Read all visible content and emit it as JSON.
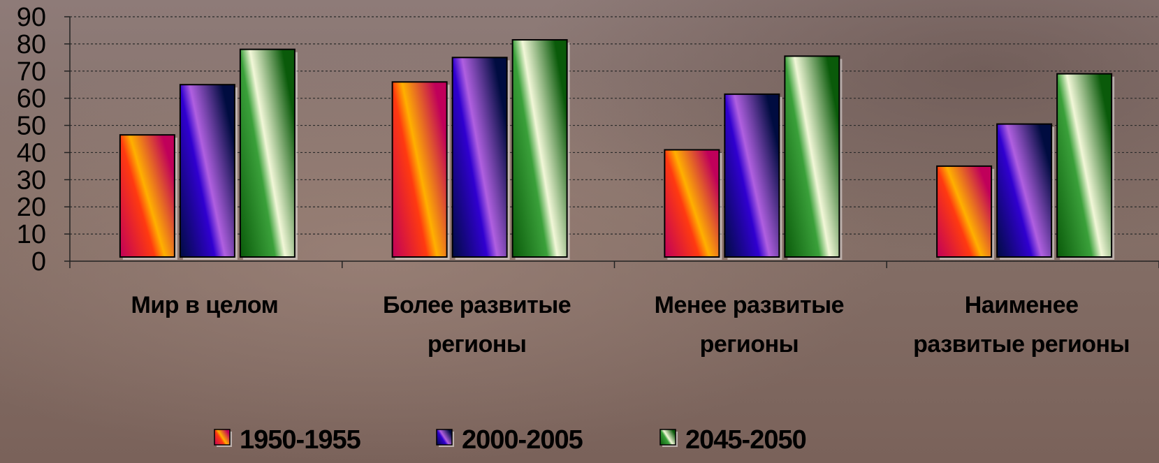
{
  "chart_data": {
    "type": "bar",
    "title": "",
    "xlabel": "",
    "ylabel": "",
    "ylim": [
      0,
      90
    ],
    "yticks": [
      0,
      10,
      20,
      30,
      40,
      50,
      60,
      70,
      80,
      90
    ],
    "grid": true,
    "legend_position": "bottom",
    "categories": [
      [
        "Мир в целом"
      ],
      [
        "Более развитые",
        "регионы"
      ],
      [
        "Менее развитые",
        "регионы"
      ],
      [
        "Наименее",
        "развитые регионы"
      ]
    ],
    "series": [
      {
        "name": "1950-1955",
        "values": [
          46.5,
          66,
          41,
          35
        ],
        "colors": [
          "#c0005a",
          "#ff3a10",
          "#ffb000"
        ]
      },
      {
        "name": "2000-2005",
        "values": [
          65,
          75,
          61.5,
          50.5
        ],
        "colors": [
          "#000c40",
          "#3000d0",
          "#b060e0"
        ]
      },
      {
        "name": "2045-2050",
        "values": [
          78,
          81.5,
          75.5,
          69
        ],
        "colors": [
          "#0a5a0a",
          "#3aa03a",
          "#f2f7d8"
        ]
      }
    ]
  }
}
